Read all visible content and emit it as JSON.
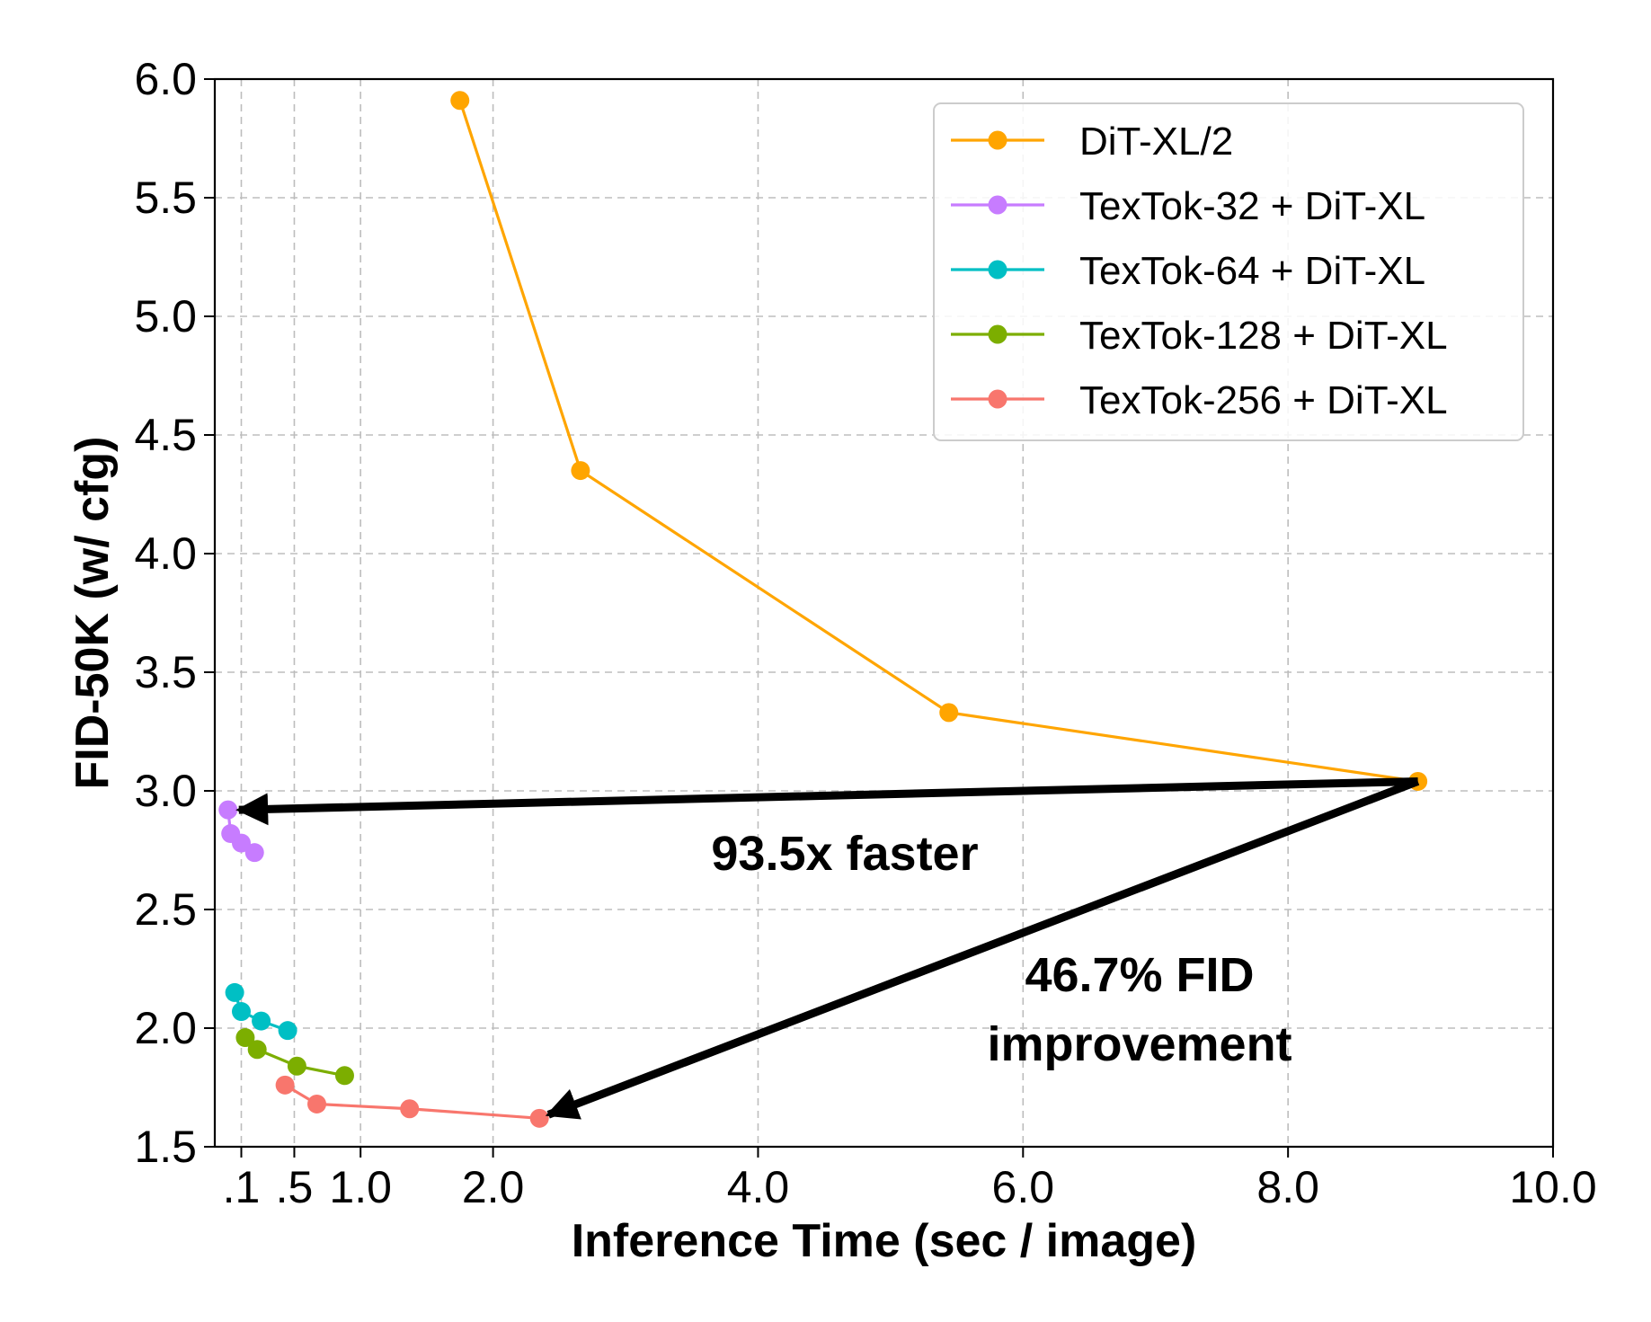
{
  "chart_data": {
    "type": "line",
    "title": "",
    "xlabel": "Inference Time (sec / image)",
    "ylabel": "FID-50K (w/ cfg)",
    "xlim": [
      -0.1,
      10.0
    ],
    "ylim": [
      1.5,
      6.0
    ],
    "xticks": [
      {
        "value": 0.1,
        "label": ".1"
      },
      {
        "value": 0.5,
        "label": ".5"
      },
      {
        "value": 1.0,
        "label": "1.0"
      },
      {
        "value": 2.0,
        "label": "2.0"
      },
      {
        "value": 4.0,
        "label": "4.0"
      },
      {
        "value": 6.0,
        "label": "6.0"
      },
      {
        "value": 8.0,
        "label": "8.0"
      },
      {
        "value": 10.0,
        "label": "10.0"
      }
    ],
    "yticks": [
      {
        "value": 1.5,
        "label": "1.5"
      },
      {
        "value": 2.0,
        "label": "2.0"
      },
      {
        "value": 2.5,
        "label": "2.5"
      },
      {
        "value": 3.0,
        "label": "3.0"
      },
      {
        "value": 3.5,
        "label": "3.5"
      },
      {
        "value": 4.0,
        "label": "4.0"
      },
      {
        "value": 4.5,
        "label": "4.5"
      },
      {
        "value": 5.0,
        "label": "5.0"
      },
      {
        "value": 5.5,
        "label": "5.5"
      },
      {
        "value": 6.0,
        "label": "6.0"
      }
    ],
    "grid": true,
    "legend_position": "top-right",
    "series": [
      {
        "name": "DiT-XL/2",
        "color": "#ffa500",
        "x": [
          1.75,
          2.66,
          5.44,
          8.98
        ],
        "y": [
          5.91,
          4.35,
          3.33,
          3.04
        ]
      },
      {
        "name": "TexTok-32 + DiT-XL",
        "color": "#c77cff",
        "x": [
          0.0,
          0.02,
          0.1,
          0.2
        ],
        "y": [
          2.92,
          2.82,
          2.78,
          2.74
        ]
      },
      {
        "name": "TexTok-64 + DiT-XL",
        "color": "#00bfc4",
        "x": [
          0.05,
          0.1,
          0.25,
          0.45
        ],
        "y": [
          2.15,
          2.07,
          2.03,
          1.99
        ]
      },
      {
        "name": "TexTok-128 + DiT-XL",
        "color": "#7cae00",
        "x": [
          0.13,
          0.22,
          0.52,
          0.88
        ],
        "y": [
          1.96,
          1.91,
          1.84,
          1.8
        ]
      },
      {
        "name": "TexTok-256 + DiT-XL",
        "color": "#f8766d",
        "x": [
          0.43,
          0.67,
          1.37,
          2.35
        ],
        "y": [
          1.76,
          1.68,
          1.66,
          1.62
        ]
      }
    ],
    "annotations": [
      {
        "text": "93.5x faster",
        "x": 4.7,
        "y": 2.7,
        "arrow_from": [
          8.98,
          3.04
        ],
        "arrow_to": [
          0.0,
          2.92
        ]
      },
      {
        "text_lines": [
          "46.7% FID",
          "improvement"
        ],
        "x": 7.0,
        "y": 2.0,
        "arrow_from": [
          8.98,
          3.04
        ],
        "arrow_to": [
          2.35,
          1.62
        ]
      }
    ]
  }
}
